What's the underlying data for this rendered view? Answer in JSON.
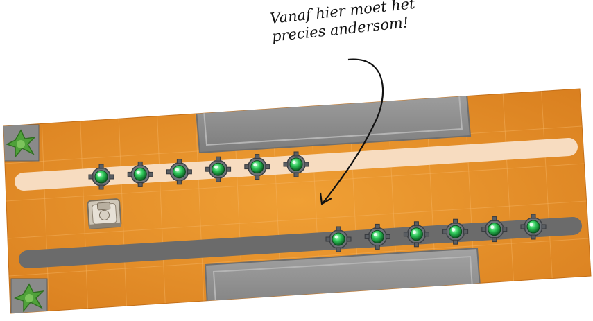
{
  "annotation": {
    "line1": "Vanaf hier moet het",
    "line2": "precies andersom!"
  },
  "board": {
    "ground_color": "#e8922a",
    "stone_color": "#8f8f8f",
    "light_path_color": "#f7dcc0",
    "dark_path_color": "#6b6b6b",
    "gem_color": "#1faa44",
    "upper_gem_count": 6,
    "lower_gem_count": 6,
    "icons": [
      "bush-icon",
      "bush-icon",
      "robot-tank-icon",
      "gem-icon",
      "arrow-icon"
    ]
  }
}
